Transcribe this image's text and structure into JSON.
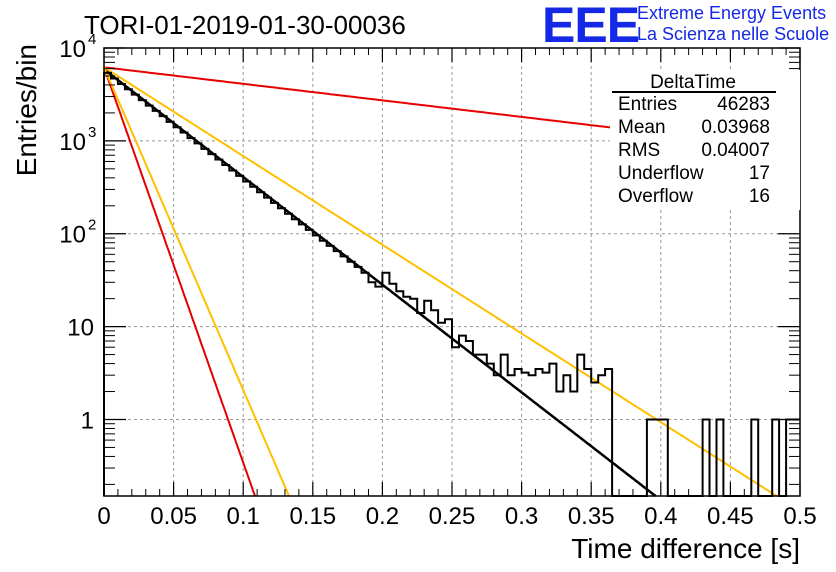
{
  "title": "TORI-01-2019-01-30-00036",
  "logo": {
    "mark": "EEE",
    "line1": "Extreme Energy Events",
    "line2": "La Scienza nelle Scuole"
  },
  "stats": {
    "title": "DeltaTime",
    "rows": [
      {
        "label": "Entries",
        "value": "46283"
      },
      {
        "label": "Mean",
        "value": "0.03968"
      },
      {
        "label": "RMS",
        "value": "0.04007"
      },
      {
        "label": "Underflow",
        "value": "17"
      },
      {
        "label": "Overflow",
        "value": "16"
      }
    ]
  },
  "chart_data": {
    "type": "histogram",
    "title": "TORI-01-2019-01-30-00036",
    "xlabel": "Time difference [s]",
    "ylabel": "Entries/bin",
    "xlim": [
      0,
      0.5
    ],
    "ylim": [
      0.15,
      10000
    ],
    "yscale": "log",
    "grid": true,
    "x_ticks": [
      "0",
      "0.05",
      "0.1",
      "0.15",
      "0.2",
      "0.25",
      "0.3",
      "0.35",
      "0.4",
      "0.45",
      "0.5"
    ],
    "y_ticks": [
      {
        "value": 1,
        "base": "1",
        "exp": ""
      },
      {
        "value": 10,
        "base": "10",
        "exp": ""
      },
      {
        "value": 100,
        "base": "10",
        "exp": "2"
      },
      {
        "value": 1000,
        "base": "10",
        "exp": "3"
      },
      {
        "value": 10000,
        "base": "10",
        "exp": "4"
      }
    ],
    "histogram": {
      "bin_width": 0.005,
      "counts": [
        5400,
        4700,
        4100,
        3600,
        3150,
        2750,
        2400,
        2100,
        1850,
        1600,
        1400,
        1230,
        1070,
        940,
        820,
        720,
        630,
        550,
        480,
        420,
        365,
        320,
        280,
        245,
        215,
        188,
        164,
        143,
        126,
        110,
        96,
        84,
        74,
        65,
        57,
        50,
        44,
        38,
        30,
        27,
        38,
        29,
        24,
        21,
        20,
        14,
        19,
        15,
        11,
        12,
        6,
        8,
        7,
        5,
        5,
        4,
        3,
        5,
        3,
        3.5,
        3.2,
        3,
        3.5,
        3.2,
        4,
        2,
        3,
        2,
        5,
        3.5,
        2.5,
        3,
        3.5,
        0.1,
        0.1,
        0.1,
        0.1,
        0.1,
        1,
        1,
        1,
        0.1,
        0.1,
        0.1,
        0.1,
        0.1,
        1,
        0.1,
        1,
        0.1,
        0.1,
        0.1,
        0.1,
        1,
        0.1,
        0.1,
        1,
        0.1,
        1,
        1
      ]
    },
    "curves": [
      {
        "color": "#000000",
        "a": 5900,
        "slope": 26.7,
        "width": 2.5
      },
      {
        "color": "#e60000",
        "a": 6200,
        "slope": 4.1,
        "width": 2
      },
      {
        "color": "#e60000",
        "a": 6200,
        "slope": 98,
        "width": 2
      },
      {
        "color": "#ffc000",
        "a": 6200,
        "slope": 22,
        "width": 2
      },
      {
        "color": "#ffc000",
        "a": 6200,
        "slope": 80,
        "width": 2
      }
    ]
  }
}
